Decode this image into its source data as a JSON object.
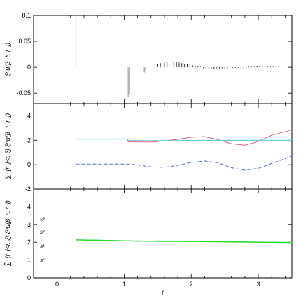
{
  "chart_data": [
    {
      "type": "bar",
      "panel": "top",
      "ylabel": "ξ^u(β_*, r_j)",
      "ylim": [
        -0.07,
        0.1
      ],
      "xlim": [
        -0.35,
        3.5
      ],
      "y_ticks": [
        {
          "v": 0.1,
          "t": "0.1"
        },
        {
          "v": 0.05,
          "t": "0.05"
        },
        {
          "v": 0,
          "t": "0"
        },
        {
          "v": -0.05,
          "t": "-0.05"
        }
      ],
      "x_ticks": [
        0,
        1,
        2,
        3
      ],
      "bars": [
        {
          "x": 0.28,
          "y": 0.1,
          "color": "#888888"
        },
        {
          "x": 1.06,
          "y": -0.057,
          "color": "#888888"
        },
        {
          "x": 1.08,
          "y": -0.052,
          "color": "#888888"
        },
        {
          "x": 1.3,
          "y": -0.01,
          "color": "#888888"
        },
        {
          "x": 1.32,
          "y": -0.008,
          "color": "#888888"
        },
        {
          "x": 1.5,
          "y": 0.006,
          "color": "#222222"
        },
        {
          "x": 1.54,
          "y": 0.008,
          "color": "#222222"
        },
        {
          "x": 1.6,
          "y": 0.009,
          "color": "#222222"
        },
        {
          "x": 1.64,
          "y": 0.01,
          "color": "#222222"
        },
        {
          "x": 1.7,
          "y": 0.011,
          "color": "#222222"
        },
        {
          "x": 1.74,
          "y": 0.011,
          "color": "#222222"
        },
        {
          "x": 1.78,
          "y": 0.01,
          "color": "#222222"
        },
        {
          "x": 1.82,
          "y": 0.009,
          "color": "#222222"
        },
        {
          "x": 1.86,
          "y": 0.008,
          "color": "#222222"
        },
        {
          "x": 1.9,
          "y": 0.007,
          "color": "#222222"
        },
        {
          "x": 1.94,
          "y": 0.006,
          "color": "#222222"
        },
        {
          "x": 1.98,
          "y": 0.005,
          "color": "#222222"
        },
        {
          "x": 2.02,
          "y": 0.004,
          "color": "#222222"
        },
        {
          "x": 2.06,
          "y": 0.003,
          "color": "#222222"
        },
        {
          "x": 2.1,
          "y": 0.002,
          "color": "#222222"
        },
        {
          "x": 2.14,
          "y": 0.001,
          "color": "#222222"
        },
        {
          "x": 2.18,
          "y": -0.001,
          "color": "#222222"
        },
        {
          "x": 2.22,
          "y": -0.002,
          "color": "#222222"
        },
        {
          "x": 2.26,
          "y": -0.002,
          "color": "#222222"
        },
        {
          "x": 2.3,
          "y": -0.002,
          "color": "#222222"
        },
        {
          "x": 2.34,
          "y": -0.003,
          "color": "#222222"
        },
        {
          "x": 2.38,
          "y": -0.002,
          "color": "#222222"
        },
        {
          "x": 2.42,
          "y": -0.002,
          "color": "#222222"
        },
        {
          "x": 2.46,
          "y": -0.002,
          "color": "#222222"
        },
        {
          "x": 2.5,
          "y": -0.002,
          "color": "#222222"
        },
        {
          "x": 2.54,
          "y": -0.002,
          "color": "#222222"
        },
        {
          "x": 2.58,
          "y": -0.001,
          "color": "#222222"
        },
        {
          "x": 2.62,
          "y": -0.001,
          "color": "#222222"
        },
        {
          "x": 2.66,
          "y": -0.001,
          "color": "#222222"
        },
        {
          "x": 2.7,
          "y": -0.001,
          "color": "#222222"
        },
        {
          "x": 2.74,
          "y": -0.001,
          "color": "#222222"
        },
        {
          "x": 2.78,
          "y": -0.001,
          "color": "#222222"
        },
        {
          "x": 2.82,
          "y": 0.001,
          "color": "#222222"
        },
        {
          "x": 2.86,
          "y": 0.001,
          "color": "#222222"
        },
        {
          "x": 2.9,
          "y": 0.001,
          "color": "#222222"
        },
        {
          "x": 2.94,
          "y": 0.001,
          "color": "#222222"
        },
        {
          "x": 2.98,
          "y": 0.002,
          "color": "#222222"
        },
        {
          "x": 3.02,
          "y": 0.002,
          "color": "#222222"
        },
        {
          "x": 3.06,
          "y": 0.002,
          "color": "#222222"
        },
        {
          "x": 3.1,
          "y": 0.002,
          "color": "#222222"
        },
        {
          "x": 3.14,
          "y": 0.001,
          "color": "#222222"
        },
        {
          "x": 3.18,
          "y": 0.001,
          "color": "#222222"
        },
        {
          "x": 3.22,
          "y": 0.001,
          "color": "#222222"
        },
        {
          "x": 3.26,
          "y": 0.001,
          "color": "#222222"
        },
        {
          "x": 3.3,
          "y": 0.001,
          "color": "#222222"
        }
      ]
    },
    {
      "type": "line",
      "panel": "middle",
      "ylabel": "∑_{r_j<r, ξ} ξ^u(β_*, r_j)",
      "ylim": [
        -2,
        5
      ],
      "xlim": [
        -0.35,
        3.5
      ],
      "y_ticks": [
        {
          "v": 4,
          "t": "4"
        },
        {
          "v": 2,
          "t": "2"
        },
        {
          "v": 0,
          "t": "0"
        },
        {
          "v": -2,
          "t": "-2"
        }
      ],
      "x_ticks": [
        0,
        1,
        2,
        3
      ],
      "series": [
        {
          "color": "#e34a5a",
          "dash": false,
          "width": 0.9,
          "x": [
            0.28,
            1.05,
            1.06,
            1.2,
            1.4,
            1.6,
            1.8,
            2.0,
            2.2,
            2.4,
            2.6,
            2.8,
            3.0,
            3.2,
            3.5
          ],
          "y": [
            2.1,
            2.1,
            1.87,
            1.86,
            1.85,
            1.94,
            2.08,
            2.25,
            2.3,
            2.05,
            1.72,
            1.6,
            1.9,
            2.42,
            2.85
          ]
        },
        {
          "color": "#5bc8e8",
          "dash": false,
          "width": 1.2,
          "x": [
            0.28,
            1.05,
            1.06,
            1.5,
            2.0,
            2.5,
            3.0,
            3.5
          ],
          "y": [
            2.1,
            2.1,
            1.97,
            1.97,
            1.98,
            2.0,
            2.0,
            2.0
          ]
        },
        {
          "color": "#5566dd",
          "dash": true,
          "width": 1.0,
          "x": [
            0.28,
            1.05,
            1.2,
            1.4,
            1.6,
            1.8,
            2.0,
            2.2,
            2.4,
            2.6,
            2.8,
            3.0,
            3.2,
            3.4,
            3.5
          ],
          "y": [
            0.05,
            0.05,
            -0.02,
            -0.18,
            -0.22,
            -0.05,
            0.18,
            0.3,
            0.15,
            -0.25,
            -0.45,
            -0.3,
            0.1,
            0.5,
            0.7
          ]
        }
      ]
    },
    {
      "type": "line",
      "panel": "bottom",
      "ylabel": "∑̃_{r_j<r, ξ} ξ^u(β_*, r_j)",
      "ylim": [
        0,
        5
      ],
      "xlim": [
        -0.35,
        3.5
      ],
      "xlabel": "r",
      "y_ticks": [
        {
          "v": 4,
          "t": "4"
        },
        {
          "v": 3,
          "t": "3"
        },
        {
          "v": 2,
          "t": "2"
        },
        {
          "v": 1,
          "t": "1"
        },
        {
          "v": 0,
          "t": "0"
        }
      ],
      "x_ticks": [
        0,
        1,
        2,
        3
      ],
      "annotations": [
        {
          "text": "s³",
          "y": 3.3
        },
        {
          "text": "s²",
          "y": 2.6
        },
        {
          "text": "s¹",
          "y": 1.8
        },
        {
          "text": "s⁰",
          "y": 1.0
        }
      ],
      "series": [
        {
          "color": "#5bc8e8",
          "dash": false,
          "width": 1.0,
          "x": [
            0.28,
            0.9,
            1.0,
            1.2,
            1.5,
            2.0,
            2.5,
            3.0,
            3.5
          ],
          "y": [
            2.14,
            2.1,
            2.07,
            2.05,
            2.08,
            2.06,
            2.03,
            2.01,
            2.0
          ]
        },
        {
          "color": "#22dd22",
          "dash": false,
          "width": 1.4,
          "x": [
            0.28,
            1.0,
            1.5,
            2.0,
            2.5,
            3.0,
            3.5
          ],
          "y": [
            2.13,
            2.08,
            2.05,
            2.04,
            2.02,
            2.0,
            1.98
          ]
        }
      ]
    }
  ]
}
